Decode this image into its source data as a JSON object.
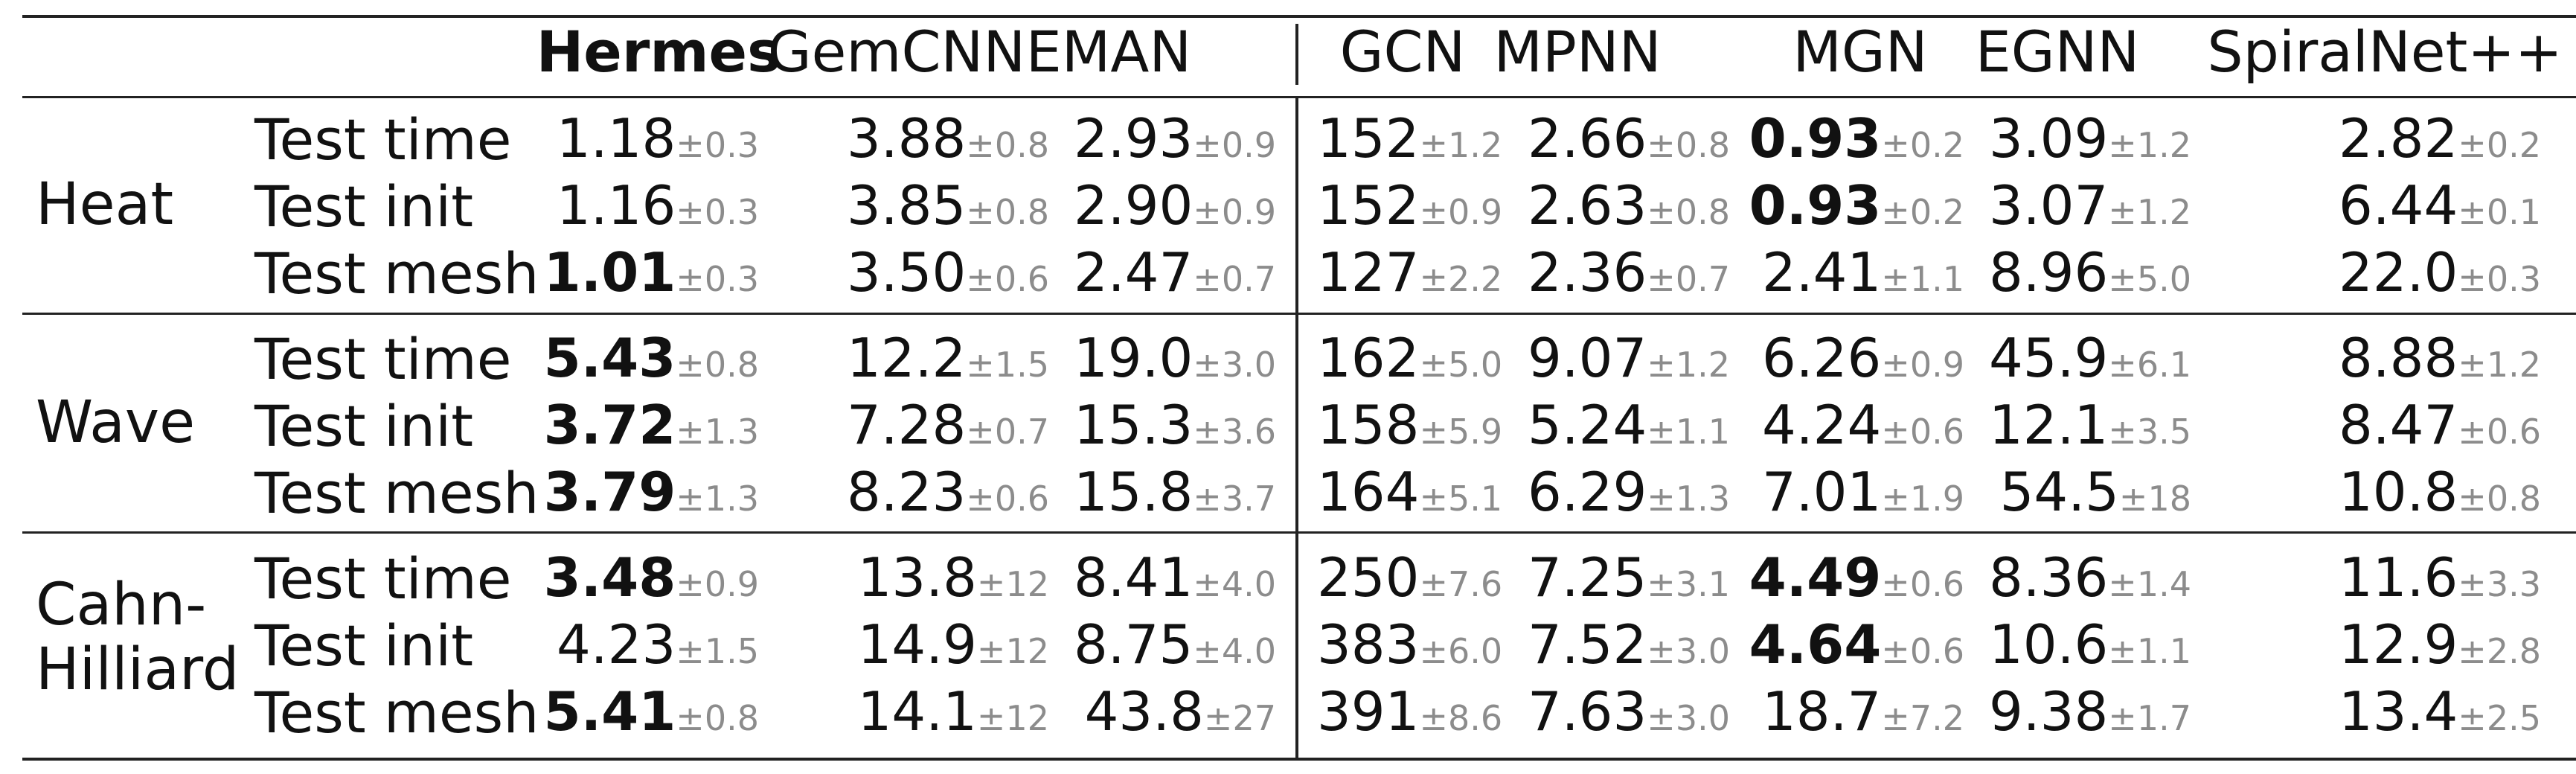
{
  "columns": [
    "Hermes",
    "GemCNN",
    "EMAN",
    "GCN",
    "MPNN",
    "MGN",
    "EGNN",
    "SpiralNet++"
  ],
  "groups": [
    {
      "name": "Heat",
      "rows": [
        {
          "label": "Test time",
          "cells": [
            {
              "value": "1.18",
              "std": "±0.3",
              "bold": false
            },
            {
              "value": "3.88",
              "std": "±0.8",
              "bold": false
            },
            {
              "value": "2.93",
              "std": "±0.9",
              "bold": false
            },
            {
              "value": "152",
              "std": "±1.2",
              "bold": false
            },
            {
              "value": "2.66",
              "std": "±0.8",
              "bold": false
            },
            {
              "value": "0.93",
              "std": "±0.2",
              "bold": true
            },
            {
              "value": "3.09",
              "std": "±1.2",
              "bold": false
            },
            {
              "value": "2.82",
              "std": "±0.2",
              "bold": false
            }
          ]
        },
        {
          "label": "Test init",
          "cells": [
            {
              "value": "1.16",
              "std": "±0.3",
              "bold": false
            },
            {
              "value": "3.85",
              "std": "±0.8",
              "bold": false
            },
            {
              "value": "2.90",
              "std": "±0.9",
              "bold": false
            },
            {
              "value": "152",
              "std": "±0.9",
              "bold": false
            },
            {
              "value": "2.63",
              "std": "±0.8",
              "bold": false
            },
            {
              "value": "0.93",
              "std": "±0.2",
              "bold": true
            },
            {
              "value": "3.07",
              "std": "±1.2",
              "bold": false
            },
            {
              "value": "6.44",
              "std": "±0.1",
              "bold": false
            }
          ]
        },
        {
          "label": "Test mesh",
          "cells": [
            {
              "value": "1.01",
              "std": "±0.3",
              "bold": true
            },
            {
              "value": "3.50",
              "std": "±0.6",
              "bold": false
            },
            {
              "value": "2.47",
              "std": "±0.7",
              "bold": false
            },
            {
              "value": "127",
              "std": "±2.2",
              "bold": false
            },
            {
              "value": "2.36",
              "std": "±0.7",
              "bold": false
            },
            {
              "value": "2.41",
              "std": "±1.1",
              "bold": false
            },
            {
              "value": "8.96",
              "std": "±5.0",
              "bold": false
            },
            {
              "value": "22.0",
              "std": "±0.3",
              "bold": false
            }
          ]
        }
      ]
    },
    {
      "name": "Wave",
      "rows": [
        {
          "label": "Test time",
          "cells": [
            {
              "value": "5.43",
              "std": "±0.8",
              "bold": true
            },
            {
              "value": "12.2",
              "std": "±1.5",
              "bold": false
            },
            {
              "value": "19.0",
              "std": "±3.0",
              "bold": false
            },
            {
              "value": "162",
              "std": "±5.0",
              "bold": false
            },
            {
              "value": "9.07",
              "std": "±1.2",
              "bold": false
            },
            {
              "value": "6.26",
              "std": "±0.9",
              "bold": false
            },
            {
              "value": "45.9",
              "std": "±6.1",
              "bold": false
            },
            {
              "value": "8.88",
              "std": "±1.2",
              "bold": false
            }
          ]
        },
        {
          "label": "Test init",
          "cells": [
            {
              "value": "3.72",
              "std": "±1.3",
              "bold": true
            },
            {
              "value": "7.28",
              "std": "±0.7",
              "bold": false
            },
            {
              "value": "15.3",
              "std": "±3.6",
              "bold": false
            },
            {
              "value": "158",
              "std": "±5.9",
              "bold": false
            },
            {
              "value": "5.24",
              "std": "±1.1",
              "bold": false
            },
            {
              "value": "4.24",
              "std": "±0.6",
              "bold": false
            },
            {
              "value": "12.1",
              "std": "±3.5",
              "bold": false
            },
            {
              "value": "8.47",
              "std": "±0.6",
              "bold": false
            }
          ]
        },
        {
          "label": "Test mesh",
          "cells": [
            {
              "value": "3.79",
              "std": "±1.3",
              "bold": true
            },
            {
              "value": "8.23",
              "std": "±0.6",
              "bold": false
            },
            {
              "value": "15.8",
              "std": "±3.7",
              "bold": false
            },
            {
              "value": "164",
              "std": "±5.1",
              "bold": false
            },
            {
              "value": "6.29",
              "std": "±1.3",
              "bold": false
            },
            {
              "value": "7.01",
              "std": "±1.9",
              "bold": false
            },
            {
              "value": "54.5",
              "std": "±18",
              "bold": false
            },
            {
              "value": "10.8",
              "std": "±0.8",
              "bold": false
            }
          ]
        }
      ]
    },
    {
      "name": "Cahn-\nHilliard",
      "rows": [
        {
          "label": "Test time",
          "cells": [
            {
              "value": "3.48",
              "std": "±0.9",
              "bold": true
            },
            {
              "value": "13.8",
              "std": "±12",
              "bold": false
            },
            {
              "value": "8.41",
              "std": "±4.0",
              "bold": false
            },
            {
              "value": "250",
              "std": "±7.6",
              "bold": false
            },
            {
              "value": "7.25",
              "std": "±3.1",
              "bold": false
            },
            {
              "value": "4.49",
              "std": "±0.6",
              "bold": true
            },
            {
              "value": "8.36",
              "std": "±1.4",
              "bold": false
            },
            {
              "value": "11.6",
              "std": "±3.3",
              "bold": false
            }
          ]
        },
        {
          "label": "Test init",
          "cells": [
            {
              "value": "4.23",
              "std": "±1.5",
              "bold": false
            },
            {
              "value": "14.9",
              "std": "±12",
              "bold": false
            },
            {
              "value": "8.75",
              "std": "±4.0",
              "bold": false
            },
            {
              "value": "383",
              "std": "±6.0",
              "bold": false
            },
            {
              "value": "7.52",
              "std": "±3.0",
              "bold": false
            },
            {
              "value": "4.64",
              "std": "±0.6",
              "bold": true
            },
            {
              "value": "10.6",
              "std": "±1.1",
              "bold": false
            },
            {
              "value": "12.9",
              "std": "±2.8",
              "bold": false
            }
          ]
        },
        {
          "label": "Test mesh",
          "cells": [
            {
              "value": "5.41",
              "std": "±0.8",
              "bold": true
            },
            {
              "value": "14.1",
              "std": "±12",
              "bold": false
            },
            {
              "value": "43.8",
              "std": "±27",
              "bold": false
            },
            {
              "value": "391",
              "std": "±8.6",
              "bold": false
            },
            {
              "value": "7.63",
              "std": "±3.0",
              "bold": false
            },
            {
              "value": "18.7",
              "std": "±7.2",
              "bold": false
            },
            {
              "value": "9.38",
              "std": "±1.7",
              "bold": false
            },
            {
              "value": "13.4",
              "std": "±2.5",
              "bold": false
            }
          ]
        }
      ]
    }
  ]
}
